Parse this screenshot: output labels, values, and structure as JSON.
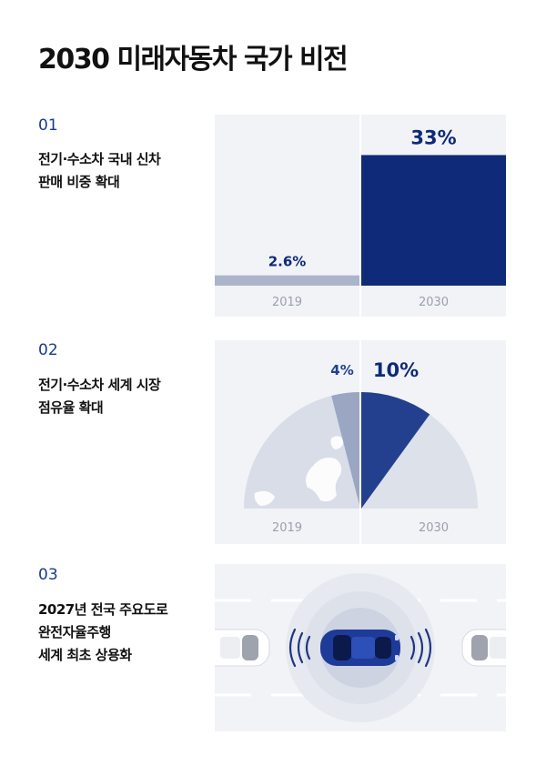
{
  "title": "2030 미래자동차 국가 비전",
  "colors": {
    "accent": "#0e2a78",
    "accent_mid": "#23408f",
    "light_bar": "#aab4cb",
    "panel_bg": "#f2f3f7",
    "year_text": "#9aa0ad"
  },
  "sections": [
    {
      "number": "01",
      "label_lines": [
        "전기·수소차 국내 신차",
        "판매 비중 확대"
      ]
    },
    {
      "number": "02",
      "label_lines": [
        "전기·수소차 세계 시장",
        "점유율 확대"
      ]
    },
    {
      "number": "03",
      "label_lines": [
        "2027년 전국 주요도로",
        "완전자율주행",
        "세계 최초 상용화"
      ]
    }
  ],
  "chart_data": [
    {
      "type": "bar",
      "categories": [
        "2019",
        "2030"
      ],
      "values": [
        2.6,
        33
      ],
      "value_labels": [
        "2.6%",
        "33%"
      ],
      "ylim": [
        0,
        40
      ]
    },
    {
      "type": "pie",
      "categories": [
        "2019",
        "2030"
      ],
      "values": [
        4,
        10
      ],
      "value_labels": [
        "4%",
        "10%"
      ]
    }
  ]
}
